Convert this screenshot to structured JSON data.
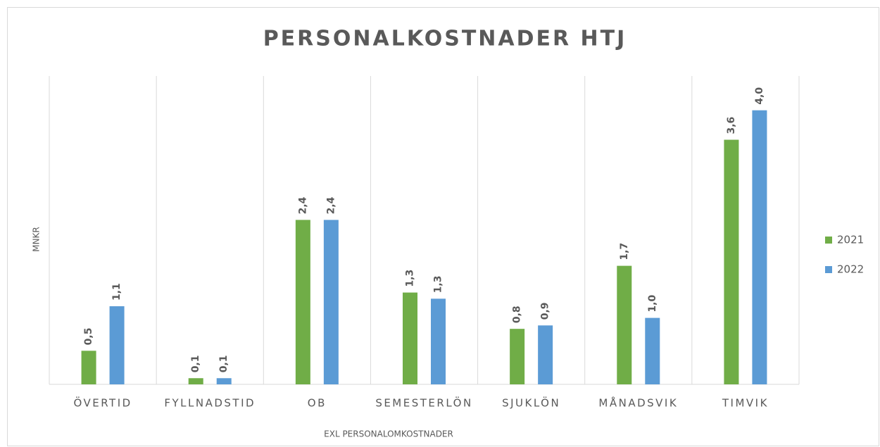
{
  "chart_data": {
    "type": "bar",
    "title": "PERSONALKOSTNADER HTJ",
    "x_label": "EXL PERSONALOMKOSTNADER",
    "y_label": "MNKR",
    "categories": [
      "ÖVERTID",
      "FYLLNADSTID",
      "OB",
      "SEMESTERLÖN",
      "SJUKLÖN",
      "MÅNADSVIK",
      "TIMVIK"
    ],
    "series": [
      {
        "name": "2021",
        "color": "#70ad47",
        "values": [
          0.49,
          0.09,
          2.4,
          1.34,
          0.81,
          1.73,
          3.57
        ],
        "value_labels": [
          "0,5",
          "0,1",
          "2,4",
          "1,3",
          "0,8",
          "1,7",
          "3,6"
        ]
      },
      {
        "name": "2022",
        "color": "#5b9bd5",
        "values": [
          1.14,
          0.09,
          2.4,
          1.25,
          0.86,
          0.97,
          4.0
        ],
        "value_labels": [
          "1,1",
          "0,1",
          "2,4",
          "1,3",
          "0,9",
          "1,0",
          "4,0"
        ]
      }
    ],
    "ylim": [
      0,
      4.5
    ],
    "legend": "right"
  }
}
